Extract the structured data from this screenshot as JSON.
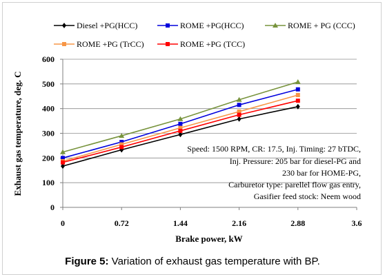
{
  "chart_data": {
    "type": "line",
    "xlabel": "Brake power, kW",
    "ylabel": "Exhaust gas temperature, deg. C",
    "xlim": [
      0,
      3.6
    ],
    "ylim": [
      0,
      600
    ],
    "x_ticks": [
      "0",
      "0.72",
      "1.44",
      "2.16",
      "2.88",
      "3.6"
    ],
    "y_ticks": [
      "0",
      "100",
      "200",
      "300",
      "400",
      "500",
      "600"
    ],
    "grid": "horizontal",
    "legend_position": "top",
    "x": [
      0,
      0.72,
      1.44,
      2.16,
      2.88
    ],
    "series": [
      {
        "name": "Diesel +PG(HCC)",
        "color": "#000000",
        "marker": "diamond",
        "values": [
          167,
          233,
          295,
          358,
          408
        ]
      },
      {
        "name": "ROME +PG(HCC)",
        "color": "#0000dd",
        "marker": "square",
        "values": [
          200,
          265,
          338,
          415,
          478
        ]
      },
      {
        "name": "ROME + PG (CCC)",
        "color": "#77933c",
        "marker": "triangle",
        "values": [
          224,
          290,
          358,
          436,
          508
        ]
      },
      {
        "name": "ROME +PG (TrCC)",
        "color": "#f79646",
        "marker": "square",
        "values": [
          187,
          255,
          322,
          388,
          455
        ]
      },
      {
        "name": "ROME +PG (TCC)",
        "color": "#ff0000",
        "marker": "square",
        "values": [
          182,
          244,
          310,
          375,
          432
        ]
      }
    ],
    "annotation": [
      "Speed: 1500 RPM, CR: 17.5, Inj. Timing:  27  bTDC,",
      "Inj. Pressure: 205 bar for diesel-PG and",
      "230 bar for HOME-PG,",
      "Carburetor type: parellel  flow gas entry,",
      "Gasifier feed stock: Neem wood"
    ]
  },
  "caption": {
    "label": "Figure 5:",
    "text": " Variation of exhaust gas temperature with BP."
  }
}
